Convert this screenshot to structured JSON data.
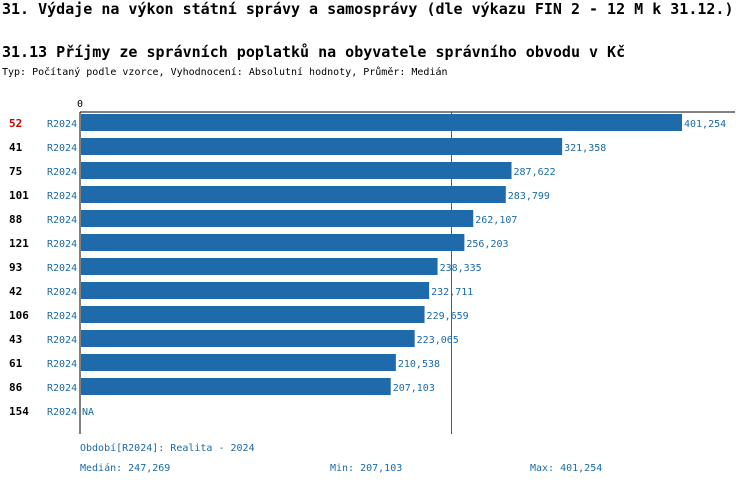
{
  "header": {
    "title": "31. Výdaje na výkon státní správy a samosprávy (dle výkazu FIN 2 - 12 M k 31.12.)",
    "subtitle": "31.13 Příjmy ze správních poplatků na obyvatele správního obvodu v Kč",
    "meta": "Typ: Počítaný podle vzorce, Vyhodnocení: Absolutní hodnoty, Průměr: Medián"
  },
  "colors": {
    "bar": "#1f6aab",
    "label": "#1a6aab",
    "highlight_rank": "#cc0000",
    "median_line": "#1f6aab"
  },
  "chart_data": {
    "type": "bar",
    "orientation": "horizontal",
    "axis_tick": "0",
    "period_code": "R2024",
    "xlim": [
      0,
      401254
    ],
    "median": 247269,
    "highlight_index": 0,
    "rows": [
      {
        "rank": "52",
        "period": "R2024",
        "value": 401254,
        "label": "401,254"
      },
      {
        "rank": "41",
        "period": "R2024",
        "value": 321358,
        "label": "321,358"
      },
      {
        "rank": "75",
        "period": "R2024",
        "value": 287622,
        "label": "287,622"
      },
      {
        "rank": "101",
        "period": "R2024",
        "value": 283799,
        "label": "283,799"
      },
      {
        "rank": "88",
        "period": "R2024",
        "value": 262107,
        "label": "262,107"
      },
      {
        "rank": "121",
        "period": "R2024",
        "value": 256203,
        "label": "256,203"
      },
      {
        "rank": "93",
        "period": "R2024",
        "value": 238335,
        "label": "238,335"
      },
      {
        "rank": "42",
        "period": "R2024",
        "value": 232711,
        "label": "232,711"
      },
      {
        "rank": "106",
        "period": "R2024",
        "value": 229659,
        "label": "229,659"
      },
      {
        "rank": "43",
        "period": "R2024",
        "value": 223065,
        "label": "223,065"
      },
      {
        "rank": "61",
        "period": "R2024",
        "value": 210538,
        "label": "210,538"
      },
      {
        "rank": "86",
        "period": "R2024",
        "value": 207103,
        "label": "207,103"
      },
      {
        "rank": "154",
        "period": "R2024",
        "value": null,
        "label": "NA"
      }
    ]
  },
  "footer": {
    "period": "Období[R2024]: Realita - 2024",
    "median": "Medián: 247,269",
    "min": "Min: 207,103",
    "max": "Max: 401,254"
  }
}
